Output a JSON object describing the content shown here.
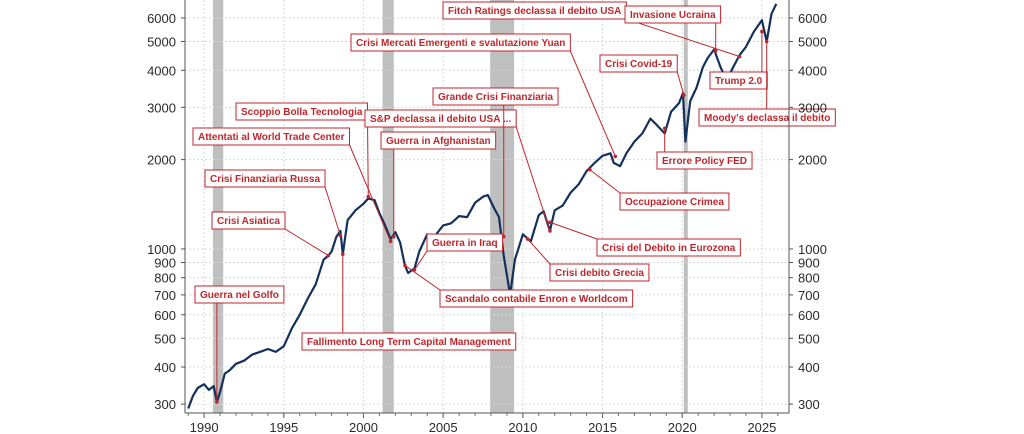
{
  "chart_data": {
    "type": "line",
    "title": "",
    "xlabel": "",
    "ylabel": "",
    "y_scale": "log",
    "ylim": [
      280,
      6900
    ],
    "xlim": [
      1988.8,
      2026.7
    ],
    "grid": true,
    "y_ticks": [
      300,
      400,
      500,
      600,
      700,
      800,
      900,
      1000,
      2000,
      3000,
      4000,
      5000,
      6000
    ],
    "y_tick_labels": [
      "300",
      "400",
      "500",
      "600",
      "700",
      "800",
      "900",
      "1000",
      "2000",
      "3000",
      "4000",
      "5000",
      "6000"
    ],
    "x_ticks": [
      1990,
      1995,
      2000,
      2005,
      2010,
      2015,
      2020,
      2025
    ],
    "x_tick_labels": [
      "1990",
      "1995",
      "2000",
      "2005",
      "2010",
      "2015",
      "2020",
      "2025"
    ],
    "colors": {
      "series": "#13315c",
      "recession": "#b8b8b8",
      "annotation": "#c0272d",
      "grid": "#d9d9d9"
    },
    "recessions": [
      {
        "start": 1990.55,
        "end": 1991.2
      },
      {
        "start": 2001.2,
        "end": 2001.9
      },
      {
        "start": 2007.95,
        "end": 2009.45
      },
      {
        "start": 2020.1,
        "end": 2020.35
      }
    ],
    "series": [
      {
        "x": [
          1989.0,
          1989.3,
          1989.6,
          1990.0,
          1990.3,
          1990.6,
          1990.8,
          1991.0,
          1991.3,
          1991.6,
          1992.0,
          1992.5,
          1993.0,
          1993.5,
          1994.0,
          1994.5,
          1995.0,
          1995.5,
          1996.0,
          1996.5,
          1997.0,
          1997.5,
          1997.8,
          1998.0,
          1998.3,
          1998.55,
          1998.7,
          1999.0,
          1999.5,
          2000.0,
          2000.3,
          2000.7,
          2001.0,
          2001.3,
          2001.7,
          2002.0,
          2002.3,
          2002.6,
          2002.8,
          2003.2,
          2003.5,
          2004.0,
          2004.5,
          2005.0,
          2005.5,
          2006.0,
          2006.5,
          2007.0,
          2007.5,
          2007.8,
          2008.2,
          2008.5,
          2008.8,
          2009.2,
          2009.5,
          2010.0,
          2010.5,
          2011.0,
          2011.3,
          2011.7,
          2012.0,
          2012.5,
          2013.0,
          2013.5,
          2014.0,
          2014.5,
          2015.0,
          2015.5,
          2015.7,
          2016.1,
          2016.5,
          2017.0,
          2017.5,
          2018.0,
          2018.3,
          2018.9,
          2019.3,
          2019.8,
          2020.05,
          2020.2,
          2020.5,
          2020.9,
          2021.3,
          2021.6,
          2022.0,
          2022.4,
          2022.8,
          2023.2,
          2023.6,
          2024.0,
          2024.5,
          2025.0,
          2025.3,
          2025.6,
          2025.9
        ],
        "y": [
          290,
          320,
          340,
          350,
          335,
          345,
          305,
          330,
          380,
          390,
          410,
          420,
          440,
          450,
          460,
          450,
          470,
          540,
          600,
          680,
          760,
          920,
          950,
          980,
          1100,
          1150,
          960,
          1250,
          1350,
          1420,
          1480,
          1460,
          1320,
          1220,
          1080,
          1140,
          1050,
          880,
          830,
          860,
          980,
          1120,
          1110,
          1200,
          1220,
          1290,
          1280,
          1430,
          1500,
          1520,
          1370,
          1280,
          950,
          700,
          920,
          1120,
          1060,
          1300,
          1340,
          1150,
          1350,
          1400,
          1550,
          1650,
          1830,
          1950,
          2060,
          2100,
          1950,
          1900,
          2100,
          2300,
          2450,
          2750,
          2650,
          2450,
          2900,
          3100,
          3350,
          2300,
          3150,
          3500,
          4100,
          4400,
          4700,
          4100,
          3700,
          4100,
          4500,
          4800,
          5400,
          5900,
          5000,
          6200,
          6700
        ]
      }
    ],
    "annotations": [
      {
        "label": "Guerra nel Golfo",
        "x": 1990.8,
        "y": 305
      },
      {
        "label": "Crisi Asiatica",
        "x": 1997.8,
        "y": 950
      },
      {
        "label": "Crisi Finanziaria Russa",
        "x": 1998.55,
        "y": 1110
      },
      {
        "label": "Attentati al World Trade Center",
        "x": 2001.7,
        "y": 1060
      },
      {
        "label": "Scoppio Bolla Tecnologia",
        "x": 2000.3,
        "y": 1500
      },
      {
        "label": "Fallimento Long Term Capital Management",
        "x": 1998.7,
        "y": 960
      },
      {
        "label": "S&P declassa il debito USA ...",
        "x": 2011.7,
        "y": 1150
      },
      {
        "label": "Guerra in Afghanistan",
        "x": 2001.9,
        "y": 1100
      },
      {
        "label": "Grande Crisi Finanziaria",
        "x": 2008.8,
        "y": 1100
      },
      {
        "label": "Guerra in Iraq",
        "x": 2003.2,
        "y": 850
      },
      {
        "label": "Scandalo contabile Enron e Worldcom",
        "x": 2002.6,
        "y": 880
      },
      {
        "label": "Crisi debito Grecia",
        "x": 2010.3,
        "y": 1080
      },
      {
        "label": "Crisi del Debito in Eurozona",
        "x": 2011.7,
        "y": 1230
      },
      {
        "label": "Occupazione Crimea",
        "x": 2014.2,
        "y": 1850
      },
      {
        "label": "Crisi Mercati Emergenti e svalutazione Yuan",
        "x": 2015.8,
        "y": 2050
      },
      {
        "label": "Crisi Covid-19",
        "x": 2020.1,
        "y": 3300
      },
      {
        "label": "Errore Policy FED",
        "x": 2018.9,
        "y": 2550
      },
      {
        "label": "Fitch Ratings declassa il debito USA",
        "x": 2023.6,
        "y": 4450
      },
      {
        "label": "Invasione Ucraina",
        "x": 2022.1,
        "y": 4650
      },
      {
        "label": "Trump 2.0",
        "x": 2025.0,
        "y": 5400
      },
      {
        "label": "Moody's declassa il debito",
        "x": 2025.3,
        "y": 5000
      }
    ]
  }
}
